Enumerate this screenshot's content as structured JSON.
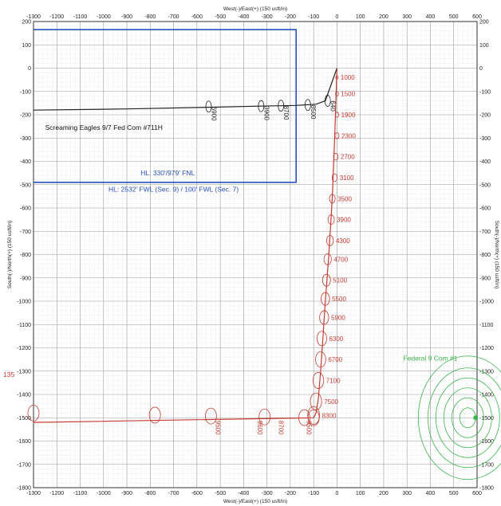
{
  "chart_data": {
    "type": "line",
    "title": "",
    "xlabel": "West(-)/East(+) (150 usft/in)",
    "ylabel": "South(-)/North(+) (150 usft/in)",
    "xlim": [
      -1300,
      600
    ],
    "ylim": [
      -1800,
      200
    ],
    "x_ticks": [
      -1300,
      -1200,
      -1100,
      -1000,
      -900,
      -800,
      -700,
      -600,
      -500,
      -400,
      -300,
      -200,
      -100,
      0,
      100,
      200,
      300,
      400,
      500,
      600
    ],
    "y_ticks": [
      200,
      100,
      0,
      -100,
      -200,
      -300,
      -400,
      -500,
      -600,
      -700,
      -800,
      -900,
      -1000,
      -1100,
      -1200,
      -1300,
      -1400,
      -1500,
      -1600,
      -1700,
      -1800
    ],
    "grid": true,
    "colors": {
      "blue_wellbore": "#2a52be",
      "black_wellbore": "#222222",
      "red_wellbore": "#c43c32",
      "offset_well": "#3cb44b",
      "grid_major": "#9a9a9a",
      "grid_minor": "#d8d8d8"
    },
    "series": [
      {
        "color": "#2a52be",
        "x": [
          -1300,
          -175,
          -175,
          -1300
        ],
        "y": [
          165,
          165,
          -490,
          -490
        ]
      },
      {
        "color": "#222222",
        "x": [
          -1300,
          -900,
          -550,
          -330,
          -175,
          -90,
          -50,
          0
        ],
        "y": [
          -180,
          -175,
          -168,
          -163,
          -160,
          -155,
          -140,
          0
        ]
      },
      {
        "color": "#c43c32",
        "x": [
          0,
          -10,
          -20,
          -35,
          -50,
          -60,
          -70,
          -80,
          -90,
          -100,
          -1300
        ],
        "y": [
          0,
          -300,
          -550,
          -800,
          -1000,
          -1150,
          -1300,
          -1420,
          -1480,
          -1500,
          -1520
        ]
      }
    ],
    "labels": {
      "black_well": "Screaming Eagles 9/7 Fed Com #711H",
      "hl_line1": "HL: 330'/979' FNL",
      "hl_line2": "HL: 2532' FWL (Sec. 9) / 100' FWL (Sec. 7)",
      "offset_well": "Federal 9 Com #1",
      "left_marker": "135"
    },
    "black_md": [
      {
        "label": "6900",
        "x": -550,
        "y": -165
      },
      {
        "label": "3900",
        "x": -325,
        "y": -163
      },
      {
        "label": "8700",
        "x": -240,
        "y": -161
      },
      {
        "label": "8500",
        "x": -125,
        "y": -158
      },
      {
        "label": "640",
        "x": -40,
        "y": -140
      }
    ],
    "red_md": [
      {
        "label": "1000",
        "x": 0,
        "y": -40
      },
      {
        "label": "1500",
        "x": 0,
        "y": -110
      },
      {
        "label": "1900",
        "x": 0,
        "y": -200
      },
      {
        "label": "2300",
        "x": 0,
        "y": -290
      },
      {
        "label": "2700",
        "x": -5,
        "y": -380
      },
      {
        "label": "3100",
        "x": -10,
        "y": -470
      },
      {
        "label": "3500",
        "x": -20,
        "y": -560
      },
      {
        "label": "3900",
        "x": -25,
        "y": -650
      },
      {
        "label": "4300",
        "x": -30,
        "y": -740
      },
      {
        "label": "4700",
        "x": -40,
        "y": -820
      },
      {
        "label": "5100",
        "x": -45,
        "y": -910
      },
      {
        "label": "5500",
        "x": -50,
        "y": -990
      },
      {
        "label": "5900",
        "x": -55,
        "y": -1070
      },
      {
        "label": "6300",
        "x": -65,
        "y": -1160
      },
      {
        "label": "6700",
        "x": -70,
        "y": -1250
      },
      {
        "label": "7100",
        "x": -80,
        "y": -1340
      },
      {
        "label": "7500",
        "x": -90,
        "y": -1430
      },
      {
        "label": "8300",
        "x": -100,
        "y": -1490
      }
    ],
    "red_md_bottom": [
      {
        "label": "9500",
        "x": -520,
        "y": -1512
      },
      {
        "label": "9600",
        "x": -340,
        "y": -1512
      },
      {
        "label": "8700",
        "x": -250,
        "y": -1512
      },
      {
        "label": "9500",
        "x": -130,
        "y": -1512
      }
    ]
  }
}
